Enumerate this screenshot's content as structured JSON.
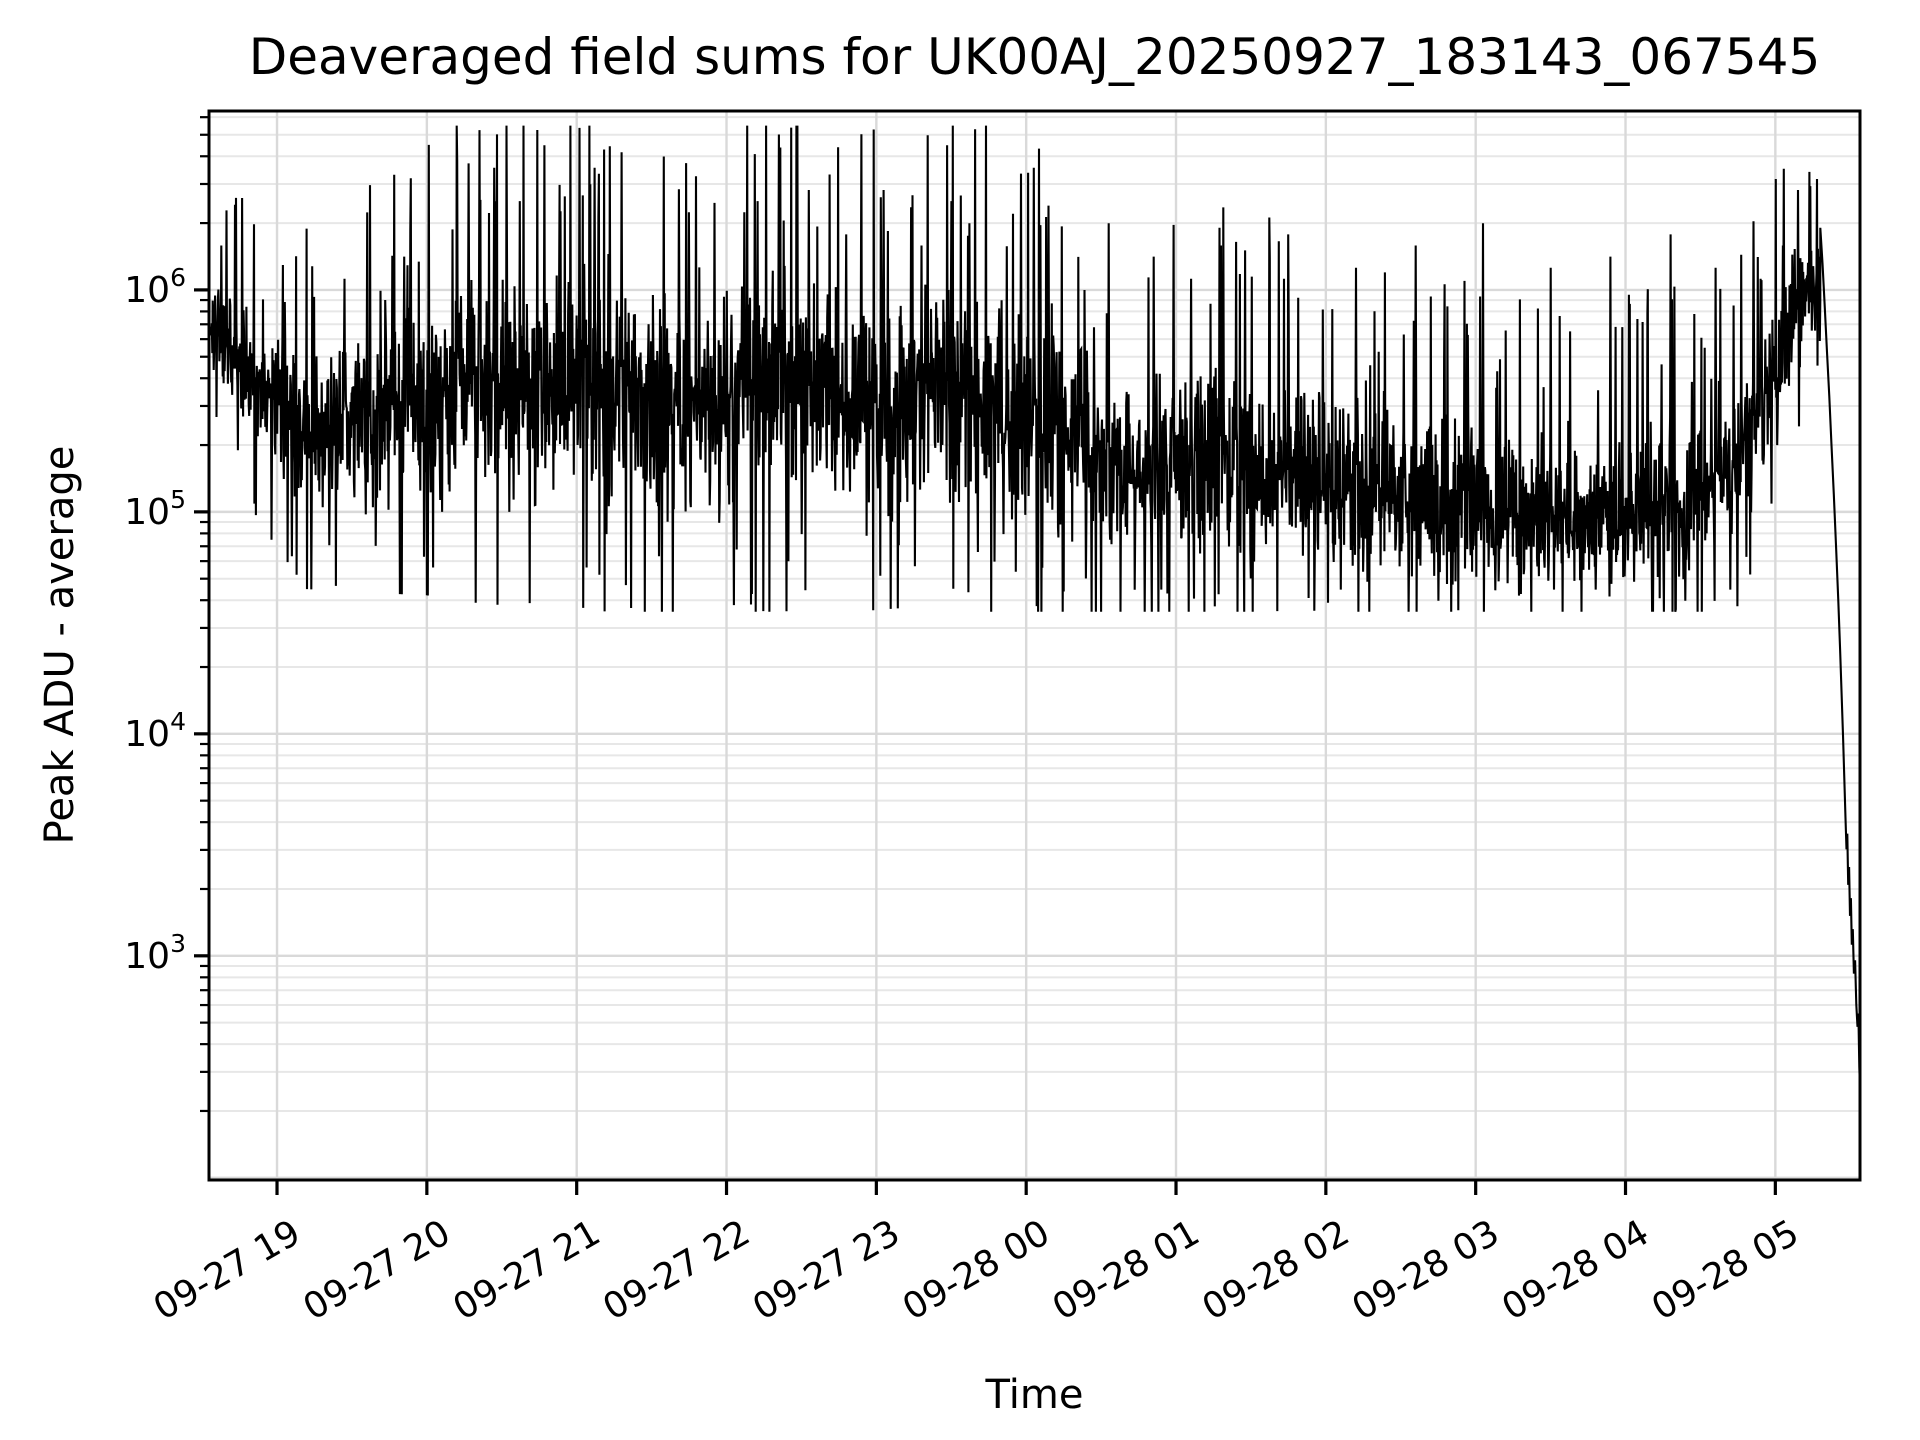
{
  "chart_data": {
    "type": "line",
    "title": "Deaveraged field sums for UK00AJ_20250927_183143_067545",
    "xlabel": "Time",
    "ylabel": "Peak ADU - average",
    "line_color": "#000000",
    "background_color": "#ffffff",
    "spine_color": "#000000",
    "major_grid_color": "#d9d9d9",
    "minor_grid_color": "#e7e7e7",
    "grid": "both",
    "legend": "none",
    "x_axis_kind": "datetime-hours",
    "x_ticks": [
      {
        "hour": 1,
        "label": "09-27 19"
      },
      {
        "hour": 2,
        "label": "09-27 20"
      },
      {
        "hour": 3,
        "label": "09-27 21"
      },
      {
        "hour": 4,
        "label": "09-27 22"
      },
      {
        "hour": 5,
        "label": "09-27 23"
      },
      {
        "hour": 6,
        "label": "09-28 00"
      },
      {
        "hour": 7,
        "label": "09-28 01"
      },
      {
        "hour": 8,
        "label": "09-28 02"
      },
      {
        "hour": 9,
        "label": "09-28 03"
      },
      {
        "hour": 10,
        "label": "09-28 04"
      },
      {
        "hour": 11,
        "label": "09-28 05"
      }
    ],
    "x_tick_rotation_deg": 30,
    "y_scale": "log",
    "y_ticks": [
      {
        "mantissa": "10",
        "exponent": "6",
        "value": 1000000
      },
      {
        "mantissa": "10",
        "exponent": "5",
        "value": 100000
      },
      {
        "mantissa": "10",
        "exponent": "4",
        "value": 10000
      },
      {
        "mantissa": "10",
        "exponent": "3",
        "value": 1000
      }
    ],
    "xlim_hours_since_0927_1800": [
      0.546,
      11.565
    ],
    "ylim_log10": [
      1.99,
      6.806
    ],
    "series_name": "deaveraged field sums",
    "envelope": {
      "comment": "central level and spread (log10 ADU) of the noisy trace vs hours since 09-27 18:00",
      "hours": [
        0.55,
        0.9,
        1.2,
        1.6,
        2.0,
        2.3,
        2.7,
        3.0,
        3.4,
        3.8,
        4.1,
        4.4,
        4.8,
        5.2,
        5.6,
        6.0,
        6.3,
        6.7,
        7.0,
        7.5,
        8.0,
        8.5,
        9.0,
        9.5,
        10.0,
        10.4,
        10.75,
        11.0,
        11.15,
        11.3
      ],
      "log10_median": [
        5.82,
        5.55,
        5.38,
        5.42,
        5.52,
        5.6,
        5.52,
        5.58,
        5.48,
        5.42,
        5.52,
        5.56,
        5.5,
        5.52,
        5.55,
        5.42,
        5.35,
        5.12,
        5.25,
        5.18,
        5.15,
        5.1,
        5.02,
        4.95,
        4.98,
        5.02,
        5.25,
        5.62,
        5.88,
        6.1
      ],
      "log10_spread": [
        0.16,
        0.22,
        0.26,
        0.28,
        0.32,
        0.36,
        0.34,
        0.36,
        0.34,
        0.34,
        0.36,
        0.36,
        0.34,
        0.34,
        0.36,
        0.34,
        0.33,
        0.28,
        0.3,
        0.3,
        0.28,
        0.27,
        0.26,
        0.24,
        0.25,
        0.26,
        0.24,
        0.22,
        0.2,
        0.14
      ]
    },
    "spikes_up": [
      [
        1.45,
        6.05
      ],
      [
        1.85,
        6.15
      ],
      [
        2.28,
        6.57
      ],
      [
        2.35,
        6.72
      ],
      [
        2.45,
        6.55
      ],
      [
        2.62,
        6.4
      ],
      [
        3.02,
        6.73
      ],
      [
        3.12,
        6.55
      ],
      [
        3.3,
        6.62
      ],
      [
        3.55,
        6.3
      ],
      [
        3.75,
        6.35
      ],
      [
        4.12,
        6.35
      ],
      [
        4.35,
        6.7
      ],
      [
        4.55,
        6.45
      ],
      [
        4.8,
        6.25
      ],
      [
        5.05,
        6.45
      ],
      [
        5.3,
        6.2
      ],
      [
        5.5,
        6.4
      ],
      [
        5.62,
        6.3
      ],
      [
        6.05,
        6.55
      ],
      [
        6.15,
        6.38
      ],
      [
        6.55,
        6.3
      ],
      [
        6.85,
        6.15
      ],
      [
        7.1,
        6.05
      ],
      [
        7.3,
        6.2
      ],
      [
        7.75,
        6.25
      ],
      [
        8.2,
        6.1
      ],
      [
        8.6,
        6.2
      ],
      [
        9.05,
        6.3
      ],
      [
        9.3,
        6.05
      ],
      [
        9.5,
        6.1
      ],
      [
        9.9,
        6.15
      ],
      [
        10.3,
        6.25
      ],
      [
        10.6,
        6.1
      ],
      [
        10.9,
        6.05
      ],
      [
        11.05,
        6.2
      ],
      [
        11.15,
        6.45
      ]
    ],
    "spikes_down": [
      [
        1.1,
        4.8
      ],
      [
        1.35,
        4.85
      ],
      [
        2.1,
        5.0
      ],
      [
        2.55,
        5.0
      ],
      [
        3.2,
        4.9
      ],
      [
        3.55,
        4.8
      ],
      [
        4.05,
        4.58
      ],
      [
        4.5,
        4.9
      ],
      [
        5.15,
        4.85
      ],
      [
        5.85,
        4.9
      ],
      [
        6.4,
        4.7
      ],
      [
        6.9,
        4.65
      ],
      [
        7.5,
        4.7
      ],
      [
        8.1,
        4.65
      ],
      [
        8.75,
        4.6
      ],
      [
        9.3,
        4.63
      ],
      [
        9.8,
        4.65
      ],
      [
        10.4,
        4.6
      ],
      [
        10.7,
        4.65
      ]
    ],
    "crash_points": [
      [
        11.3,
        6.28
      ],
      [
        11.315,
        6.12
      ],
      [
        11.33,
        5.92
      ],
      [
        11.345,
        5.72
      ],
      [
        11.36,
        5.52
      ],
      [
        11.375,
        5.3
      ],
      [
        11.39,
        5.08
      ],
      [
        11.405,
        4.85
      ],
      [
        11.42,
        4.6
      ],
      [
        11.432,
        4.38
      ],
      [
        11.442,
        4.18
      ],
      [
        11.452,
        3.98
      ],
      [
        11.46,
        3.8
      ],
      [
        11.468,
        3.62
      ],
      [
        11.475,
        3.48
      ],
      [
        11.48,
        3.55
      ],
      [
        11.486,
        3.32
      ],
      [
        11.492,
        3.4
      ],
      [
        11.498,
        3.18
      ],
      [
        11.504,
        3.26
      ],
      [
        11.51,
        3.05
      ],
      [
        11.517,
        3.12
      ],
      [
        11.524,
        2.92
      ],
      [
        11.532,
        2.98
      ],
      [
        11.54,
        2.78
      ],
      [
        11.548,
        2.68
      ],
      [
        11.554,
        2.74
      ],
      [
        11.56,
        2.5
      ],
      [
        11.565,
        2.4
      ]
    ],
    "synth": {
      "seed": 1337,
      "n_points": 3400,
      "main_span_hours": [
        0.552,
        11.3
      ],
      "tail_up_prob": 0.045,
      "tail_down_prob": 0.035,
      "clip_log10": [
        4.55,
        6.74
      ]
    }
  }
}
